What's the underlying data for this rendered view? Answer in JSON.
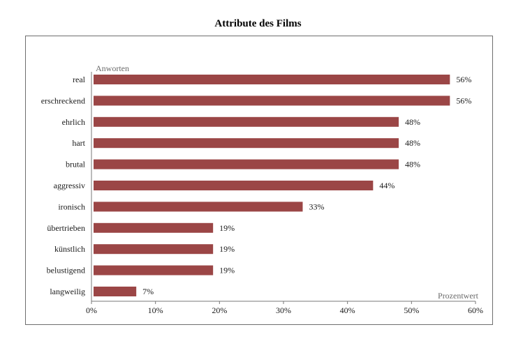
{
  "chart_data": {
    "type": "bar",
    "orientation": "horizontal",
    "title": "Attribute des Films",
    "ylabel": "Anworten",
    "xlabel": "Prozentwert",
    "categories": [
      "real",
      "erschreckend",
      "ehrlich",
      "hart",
      "brutal",
      "aggressiv",
      "ironisch",
      "übertrieben",
      "künstlich",
      "belustigend",
      "langweilig"
    ],
    "values": [
      56,
      56,
      48,
      48,
      48,
      44,
      33,
      19,
      19,
      19,
      7
    ],
    "value_labels": [
      "56%",
      "56%",
      "48%",
      "48%",
      "48%",
      "44%",
      "33%",
      "19%",
      "19%",
      "19%",
      "7%"
    ],
    "xlim": [
      0,
      60
    ],
    "xticks": [
      0,
      10,
      20,
      30,
      40,
      50,
      60
    ],
    "xtick_labels": [
      "0%",
      "10%",
      "20%",
      "30%",
      "40%",
      "50%",
      "60%"
    ],
    "grid": false,
    "legend": "none",
    "bar_color": "#9b4646"
  }
}
